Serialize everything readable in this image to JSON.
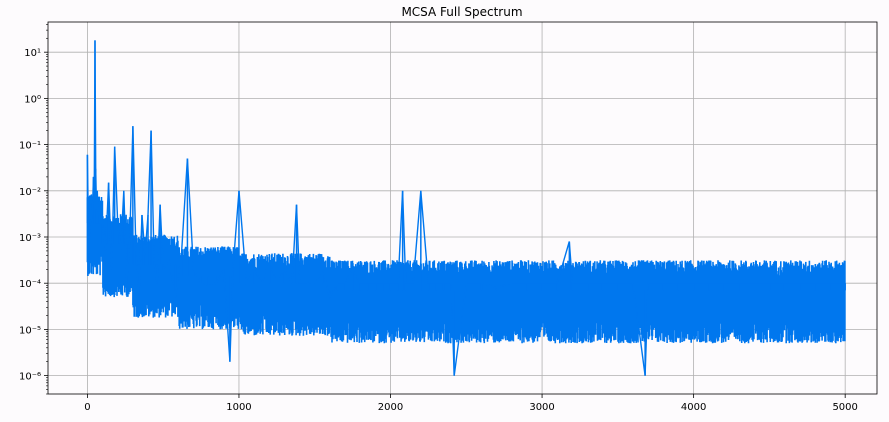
{
  "chart_data": {
    "type": "line",
    "title": "MCSA Full Spectrum",
    "xlabel": "",
    "ylabel": "",
    "xlim": [
      -260,
      5210
    ],
    "ylim": [
      4e-07,
      45
    ],
    "yscale": "log",
    "grid": true,
    "x_ticks": [
      0,
      1000,
      2000,
      3000,
      4000,
      5000
    ],
    "x_tick_labels": [
      "0",
      "1000",
      "2000",
      "3000",
      "4000",
      "5000"
    ],
    "y_ticks": [
      1e-06,
      1e-05,
      0.0001,
      0.001,
      0.01,
      0.1,
      1,
      10
    ],
    "y_tick_labels": [
      "10⁻⁶",
      "10⁻⁵",
      "10⁻⁴",
      "10⁻³",
      "10⁻²",
      "10⁻¹",
      "10⁰",
      "10¹"
    ],
    "series_color": "#0077ee",
    "series": [
      {
        "x": [
          0,
          5,
          10,
          20,
          30,
          40,
          45,
          50,
          55,
          60,
          65,
          70,
          80,
          100,
          120,
          140,
          160,
          180,
          200,
          220,
          240,
          260,
          280,
          300,
          320,
          340,
          360,
          380,
          400,
          420,
          440,
          460,
          480,
          500,
          540,
          580,
          620,
          660,
          700,
          750,
          800,
          850,
          900,
          940,
          960,
          1000,
          1050,
          1100,
          1150,
          1200,
          1250,
          1300,
          1350,
          1380,
          1400,
          1450,
          1500,
          1550,
          1600,
          1650,
          1700,
          1750,
          1800,
          1850,
          1900,
          1950,
          2000,
          2050,
          2080,
          2100,
          2150,
          2200,
          2250,
          2300,
          2350,
          2400,
          2420,
          2500,
          2600,
          2700,
          2800,
          2900,
          3000,
          3100,
          3180,
          3200,
          3300,
          3400,
          3500,
          3600,
          3680,
          3700,
          3800,
          3900,
          4000,
          4100,
          4200,
          4300,
          4400,
          4500,
          4600,
          4700,
          4800,
          4900,
          5000
        ],
        "y": [
          0.06,
          0.003,
          0.0003,
          0.005,
          0.002,
          0.02,
          0.006,
          18,
          0.03,
          0.004,
          0.01,
          0.003,
          0.004,
          0.002,
          0.0005,
          0.015,
          0.0002,
          0.09,
          0.002,
          0.0005,
          0.01,
          0.0001,
          0.001,
          0.25,
          0.0005,
          5e-05,
          0.003,
          0.0004,
          0.003,
          0.2,
          0.0003,
          0.0001,
          0.005,
          0.0002,
          0.0003,
          5e-05,
          0.0004,
          0.05,
          0.0002,
          0.0001,
          9e-05,
          0.0001,
          0.0002,
          2e-06,
          0.0002,
          0.01,
          0.0001,
          0.0002,
          0.0001,
          0.0003,
          0.0001,
          0.0002,
          0.0001,
          0.005,
          0.0001,
          0.0001,
          9e-05,
          0.0002,
          5e-05,
          0.0001,
          0.0001,
          0.0002,
          0.0001,
          0.0001,
          0.0001,
          0.0001,
          0.0001,
          0.0001,
          0.01,
          0.0001,
          0.0001,
          0.01,
          0.0001,
          0.0001,
          0.0001,
          0.0001,
          1e-06,
          0.0001,
          0.0001,
          8e-05,
          0.0001,
          0.0001,
          0.0001,
          0.0001,
          0.0008,
          0.0001,
          0.0001,
          0.0001,
          0.0001,
          0.0001,
          1e-06,
          0.0001,
          0.0001,
          0.0001,
          0.0001,
          0.0001,
          0.0001,
          0.0001,
          0.0001,
          0.0001,
          0.0001,
          0.0001,
          0.0001,
          0.0001,
          0.0001
        ]
      }
    ]
  }
}
